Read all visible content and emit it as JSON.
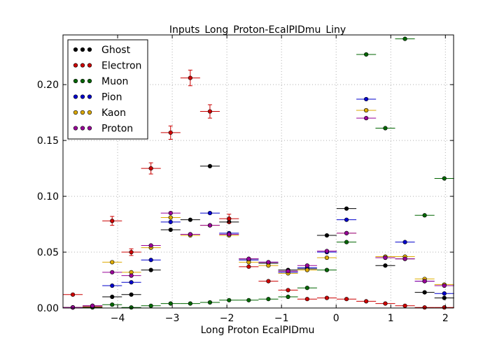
{
  "chart_data": {
    "type": "scatter",
    "title": "Inputs_Long_Proton-EcalPIDmu_Liny",
    "xlabel": "Long Proton EcalPIDmu",
    "ylabel": "",
    "xlim": [
      -5.0,
      2.15
    ],
    "ylim": [
      0.0,
      0.2445
    ],
    "xticks": [
      -4,
      -3,
      -2,
      -1,
      0,
      1,
      2
    ],
    "xtick_labels": [
      "−4",
      "−3",
      "−2",
      "−1",
      "0",
      "1",
      "2"
    ],
    "yticks": [
      0.0,
      0.05,
      0.1,
      0.15,
      0.2
    ],
    "ytick_labels": [
      "0.00",
      "0.05",
      "0.10",
      "0.15",
      "0.20"
    ],
    "grid": true,
    "legend_position": "top-left",
    "x": [
      -4.82,
      -4.46,
      -4.1,
      -3.75,
      -3.39,
      -3.03,
      -2.67,
      -2.31,
      -1.96,
      -1.6,
      -1.24,
      -0.88,
      -0.53,
      -0.17,
      0.19,
      0.55,
      0.9,
      1.26,
      1.62,
      1.98
    ],
    "x_half_width": 0.18,
    "series": [
      {
        "name": "Ghost",
        "color": "#000000",
        "values": [
          0.0005,
          0.001,
          0.01,
          0.012,
          0.034,
          0.07,
          0.079,
          0.127,
          0.077,
          0.044,
          0.04,
          0.034,
          0.035,
          0.065,
          0.089,
          0.177,
          0.038,
          0.044,
          0.014,
          0.009
        ]
      },
      {
        "name": "Electron",
        "color": "#cc0000",
        "values": [
          0.012,
          0.001,
          0.078,
          0.05,
          0.125,
          0.157,
          0.206,
          0.176,
          0.08,
          0.037,
          0.024,
          0.016,
          0.008,
          0.009,
          0.008,
          0.006,
          0.004,
          0.002,
          0.0005,
          0.0005
        ]
      },
      {
        "name": "Muon",
        "color": "#006600",
        "values": [
          0.0005,
          0.0005,
          0.003,
          0.0005,
          0.002,
          0.004,
          0.004,
          0.005,
          0.007,
          0.007,
          0.008,
          0.01,
          0.018,
          0.034,
          0.059,
          0.227,
          0.161,
          0.241,
          0.083,
          0.116
        ]
      },
      {
        "name": "Pion",
        "color": "#0000cc",
        "values": [
          0.0005,
          0.002,
          0.02,
          0.023,
          0.043,
          0.077,
          0.066,
          0.085,
          0.067,
          0.043,
          0.041,
          0.032,
          0.036,
          0.05,
          0.079,
          0.187,
          0.045,
          0.059,
          0.024,
          0.013
        ]
      },
      {
        "name": "Kaon",
        "color": "#ddaa00",
        "values": [
          0.0005,
          0.002,
          0.041,
          0.032,
          0.054,
          0.081,
          0.065,
          0.074,
          0.065,
          0.041,
          0.038,
          0.031,
          0.034,
          0.045,
          0.067,
          0.177,
          0.046,
          0.046,
          0.026,
          0.021
        ]
      },
      {
        "name": "Proton",
        "color": "#990099",
        "values": [
          0.0005,
          0.002,
          0.032,
          0.029,
          0.056,
          0.085,
          0.066,
          0.074,
          0.066,
          0.044,
          0.041,
          0.033,
          0.038,
          0.051,
          0.067,
          0.17,
          0.045,
          0.044,
          0.024,
          0.02
        ]
      }
    ],
    "error_bars": {
      "Electron": [
        0,
        0,
        0.004,
        0.003,
        0.005,
        0.006,
        0.007,
        0.006,
        0.004,
        0,
        0,
        0,
        0,
        0,
        0,
        0,
        0,
        0,
        0,
        0
      ]
    }
  }
}
